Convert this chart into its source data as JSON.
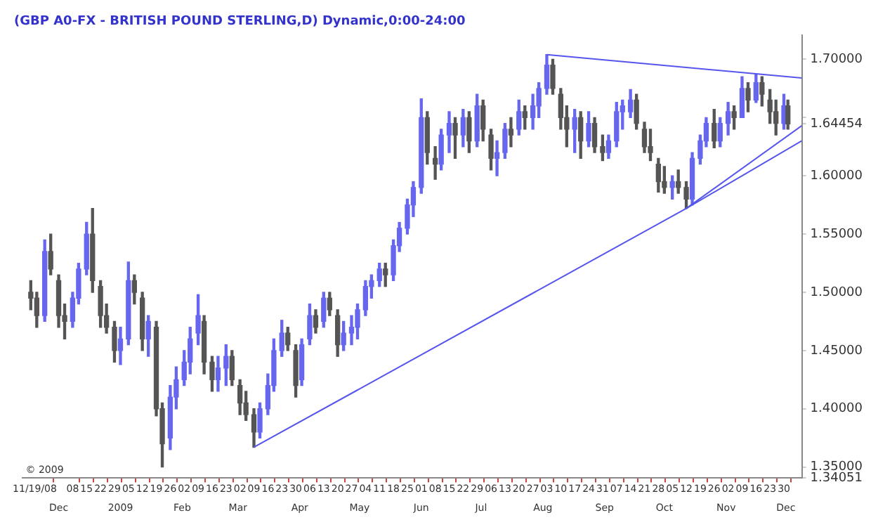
{
  "chart_data": {
    "type": "candlestick",
    "title": "(GBP A0-FX - BRITISH POUND STERLING,D) Dynamic,0:00-24:00",
    "annotations": [
      "© 2009"
    ],
    "x": [
      "2008-11-17",
      "2008-11-20",
      "2008-11-24",
      "2008-11-27",
      "2008-12-01",
      "2008-12-04",
      "2008-12-08",
      "2008-12-11",
      "2008-12-15",
      "2008-12-18",
      "2008-12-22",
      "2008-12-25",
      "2008-12-29",
      "2009-01-01",
      "2009-01-05",
      "2009-01-08",
      "2009-01-12",
      "2009-01-15",
      "2009-01-19",
      "2009-01-22",
      "2009-01-26",
      "2009-01-29",
      "2009-02-02",
      "2009-02-05",
      "2009-02-09",
      "2009-02-12",
      "2009-02-16",
      "2009-02-19",
      "2009-02-23",
      "2009-02-26",
      "2009-03-02",
      "2009-03-05",
      "2009-03-09",
      "2009-03-12",
      "2009-03-16",
      "2009-03-19",
      "2009-03-23",
      "2009-03-26",
      "2009-03-30",
      "2009-04-02",
      "2009-04-06",
      "2009-04-09",
      "2009-04-13",
      "2009-04-16",
      "2009-04-20",
      "2009-04-23",
      "2009-04-27",
      "2009-04-30",
      "2009-05-04",
      "2009-05-07",
      "2009-05-11",
      "2009-05-14",
      "2009-05-18",
      "2009-05-21",
      "2009-05-25",
      "2009-05-28",
      "2009-06-01",
      "2009-06-04",
      "2009-06-08",
      "2009-06-11",
      "2009-06-15",
      "2009-06-18",
      "2009-06-22",
      "2009-06-25",
      "2009-06-29",
      "2009-07-02",
      "2009-07-06",
      "2009-07-09",
      "2009-07-13",
      "2009-07-16",
      "2009-07-20",
      "2009-07-23",
      "2009-07-27",
      "2009-07-30",
      "2009-08-03",
      "2009-08-06",
      "2009-08-10",
      "2009-08-13",
      "2009-08-17",
      "2009-08-20",
      "2009-08-24",
      "2009-08-27",
      "2009-08-31",
      "2009-09-03",
      "2009-09-07",
      "2009-09-10",
      "2009-09-14",
      "2009-09-17",
      "2009-09-21",
      "2009-09-24",
      "2009-09-28",
      "2009-10-01",
      "2009-10-05",
      "2009-10-08",
      "2009-10-12",
      "2009-10-15",
      "2009-10-19",
      "2009-10-22",
      "2009-10-26",
      "2009-10-29",
      "2009-11-02",
      "2009-11-05",
      "2009-11-09",
      "2009-11-12",
      "2009-11-16",
      "2009-11-19",
      "2009-11-23",
      "2009-11-26",
      "2009-11-30",
      "2009-12-02"
    ],
    "ohlc": [
      [
        1.5,
        1.51,
        1.485,
        1.495
      ],
      [
        1.495,
        1.5,
        1.47,
        1.48
      ],
      [
        1.48,
        1.545,
        1.475,
        1.535
      ],
      [
        1.535,
        1.55,
        1.515,
        1.52
      ],
      [
        1.51,
        1.515,
        1.47,
        1.48
      ],
      [
        1.48,
        1.49,
        1.46,
        1.475
      ],
      [
        1.475,
        1.5,
        1.47,
        1.495
      ],
      [
        1.495,
        1.525,
        1.49,
        1.52
      ],
      [
        1.52,
        1.56,
        1.515,
        1.55
      ],
      [
        1.55,
        1.572,
        1.5,
        1.51
      ],
      [
        1.505,
        1.51,
        1.47,
        1.48
      ],
      [
        1.48,
        1.49,
        1.465,
        1.47
      ],
      [
        1.47,
        1.475,
        1.44,
        1.45
      ],
      [
        1.45,
        1.47,
        1.438,
        1.46
      ],
      [
        1.46,
        1.526,
        1.455,
        1.51
      ],
      [
        1.51,
        1.515,
        1.49,
        1.5
      ],
      [
        1.495,
        1.5,
        1.45,
        1.46
      ],
      [
        1.46,
        1.48,
        1.445,
        1.475
      ],
      [
        1.47,
        1.475,
        1.394,
        1.4
      ],
      [
        1.4,
        1.405,
        1.35,
        1.37
      ],
      [
        1.375,
        1.42,
        1.365,
        1.41
      ],
      [
        1.41,
        1.436,
        1.4,
        1.425
      ],
      [
        1.425,
        1.45,
        1.42,
        1.44
      ],
      [
        1.44,
        1.47,
        1.43,
        1.46
      ],
      [
        1.465,
        1.498,
        1.455,
        1.48
      ],
      [
        1.475,
        1.48,
        1.43,
        1.44
      ],
      [
        1.44,
        1.445,
        1.415,
        1.425
      ],
      [
        1.425,
        1.445,
        1.415,
        1.435
      ],
      [
        1.435,
        1.455,
        1.42,
        1.445
      ],
      [
        1.445,
        1.45,
        1.42,
        1.425
      ],
      [
        1.42,
        1.425,
        1.395,
        1.405
      ],
      [
        1.405,
        1.415,
        1.39,
        1.395
      ],
      [
        1.395,
        1.4,
        1.367,
        1.38
      ],
      [
        1.38,
        1.405,
        1.375,
        1.4
      ],
      [
        1.4,
        1.43,
        1.395,
        1.42
      ],
      [
        1.42,
        1.46,
        1.415,
        1.45
      ],
      [
        1.45,
        1.476,
        1.445,
        1.465
      ],
      [
        1.465,
        1.47,
        1.45,
        1.455
      ],
      [
        1.45,
        1.455,
        1.41,
        1.42
      ],
      [
        1.425,
        1.46,
        1.42,
        1.455
      ],
      [
        1.46,
        1.49,
        1.455,
        1.48
      ],
      [
        1.48,
        1.485,
        1.465,
        1.47
      ],
      [
        1.475,
        1.5,
        1.47,
        1.495
      ],
      [
        1.495,
        1.5,
        1.48,
        1.485
      ],
      [
        1.48,
        1.485,
        1.445,
        1.455
      ],
      [
        1.455,
        1.475,
        1.45,
        1.465
      ],
      [
        1.465,
        1.48,
        1.455,
        1.47
      ],
      [
        1.47,
        1.49,
        1.46,
        1.485
      ],
      [
        1.485,
        1.51,
        1.48,
        1.505
      ],
      [
        1.505,
        1.515,
        1.495,
        1.51
      ],
      [
        1.51,
        1.525,
        1.505,
        1.52
      ],
      [
        1.52,
        1.525,
        1.505,
        1.515
      ],
      [
        1.515,
        1.545,
        1.51,
        1.54
      ],
      [
        1.54,
        1.56,
        1.535,
        1.555
      ],
      [
        1.555,
        1.58,
        1.55,
        1.575
      ],
      [
        1.575,
        1.595,
        1.565,
        1.59
      ],
      [
        1.59,
        1.666,
        1.585,
        1.65
      ],
      [
        1.65,
        1.655,
        1.61,
        1.62
      ],
      [
        1.615,
        1.625,
        1.597,
        1.61
      ],
      [
        1.61,
        1.64,
        1.605,
        1.635
      ],
      [
        1.635,
        1.655,
        1.62,
        1.645
      ],
      [
        1.645,
        1.65,
        1.615,
        1.635
      ],
      [
        1.635,
        1.657,
        1.625,
        1.65
      ],
      [
        1.65,
        1.655,
        1.62,
        1.63
      ],
      [
        1.63,
        1.67,
        1.625,
        1.66
      ],
      [
        1.66,
        1.665,
        1.63,
        1.64
      ],
      [
        1.635,
        1.64,
        1.605,
        1.615
      ],
      [
        1.615,
        1.63,
        1.6,
        1.62
      ],
      [
        1.62,
        1.645,
        1.615,
        1.64
      ],
      [
        1.64,
        1.65,
        1.625,
        1.635
      ],
      [
        1.64,
        1.665,
        1.635,
        1.655
      ],
      [
        1.655,
        1.66,
        1.64,
        1.65
      ],
      [
        1.65,
        1.67,
        1.64,
        1.66
      ],
      [
        1.66,
        1.68,
        1.65,
        1.675
      ],
      [
        1.675,
        1.704,
        1.67,
        1.695
      ],
      [
        1.695,
        1.7,
        1.67,
        1.675
      ],
      [
        1.67,
        1.675,
        1.64,
        1.65
      ],
      [
        1.65,
        1.66,
        1.625,
        1.64
      ],
      [
        1.64,
        1.657,
        1.62,
        1.65
      ],
      [
        1.65,
        1.655,
        1.615,
        1.63
      ],
      [
        1.63,
        1.655,
        1.625,
        1.645
      ],
      [
        1.645,
        1.65,
        1.62,
        1.625
      ],
      [
        1.625,
        1.635,
        1.613,
        1.62
      ],
      [
        1.62,
        1.635,
        1.615,
        1.63
      ],
      [
        1.63,
        1.663,
        1.625,
        1.655
      ],
      [
        1.655,
        1.665,
        1.64,
        1.66
      ],
      [
        1.655,
        1.674,
        1.65,
        1.665
      ],
      [
        1.665,
        1.67,
        1.64,
        1.645
      ],
      [
        1.64,
        1.646,
        1.62,
        1.625
      ],
      [
        1.625,
        1.64,
        1.613,
        1.62
      ],
      [
        1.61,
        1.615,
        1.586,
        1.595
      ],
      [
        1.595,
        1.608,
        1.585,
        1.59
      ],
      [
        1.59,
        1.6,
        1.58,
        1.595
      ],
      [
        1.595,
        1.605,
        1.585,
        1.59
      ],
      [
        1.59,
        1.595,
        1.572,
        1.58
      ],
      [
        1.58,
        1.62,
        1.575,
        1.615
      ],
      [
        1.615,
        1.635,
        1.61,
        1.63
      ],
      [
        1.63,
        1.65,
        1.625,
        1.645
      ],
      [
        1.645,
        1.657,
        1.624,
        1.63
      ],
      [
        1.63,
        1.65,
        1.625,
        1.645
      ],
      [
        1.645,
        1.663,
        1.635,
        1.655
      ],
      [
        1.655,
        1.66,
        1.64,
        1.65
      ],
      [
        1.65,
        1.685,
        1.65,
        1.675
      ],
      [
        1.675,
        1.68,
        1.655,
        1.665
      ],
      [
        1.665,
        1.687,
        1.663,
        1.68
      ],
      [
        1.68,
        1.685,
        1.66,
        1.67
      ],
      [
        1.665,
        1.674,
        1.645,
        1.655
      ],
      [
        1.655,
        1.665,
        1.635,
        1.645
      ],
      [
        1.645,
        1.67,
        1.64,
        1.66
      ],
      [
        1.66,
        1.665,
        1.64,
        1.64454
      ]
    ],
    "colors": [
      "#555555",
      "#555555",
      "#6666ee",
      "#555555",
      "#555555",
      "#555555",
      "#6666ee",
      "#6666ee",
      "#6666ee",
      "#555555",
      "#555555",
      "#555555",
      "#555555",
      "#6666ee",
      "#6666ee",
      "#555555",
      "#555555",
      "#6666ee",
      "#555555",
      "#555555",
      "#6666ee",
      "#6666ee",
      "#6666ee",
      "#6666ee",
      "#6666ee",
      "#555555",
      "#555555",
      "#6666ee",
      "#6666ee",
      "#555555",
      "#555555",
      "#555555",
      "#555555",
      "#6666ee",
      "#6666ee",
      "#6666ee",
      "#6666ee",
      "#555555",
      "#555555",
      "#6666ee",
      "#6666ee",
      "#555555",
      "#6666ee",
      "#555555",
      "#555555",
      "#6666ee",
      "#6666ee",
      "#6666ee",
      "#6666ee",
      "#6666ee",
      "#6666ee",
      "#555555",
      "#6666ee",
      "#6666ee",
      "#6666ee",
      "#6666ee",
      "#6666ee",
      "#555555",
      "#555555",
      "#6666ee",
      "#6666ee",
      "#555555",
      "#6666ee",
      "#555555",
      "#6666ee",
      "#555555",
      "#555555",
      "#6666ee",
      "#6666ee",
      "#555555",
      "#6666ee",
      "#555555",
      "#6666ee",
      "#6666ee",
      "#6666ee",
      "#555555",
      "#555555",
      "#555555",
      "#6666ee",
      "#555555",
      "#6666ee",
      "#555555",
      "#555555",
      "#6666ee",
      "#6666ee",
      "#6666ee",
      "#6666ee",
      "#555555",
      "#555555",
      "#555555",
      "#555555",
      "#555555",
      "#6666ee",
      "#555555",
      "#555555",
      "#6666ee",
      "#6666ee",
      "#6666ee",
      "#555555",
      "#6666ee",
      "#6666ee",
      "#555555",
      "#6666ee",
      "#555555",
      "#6666ee",
      "#555555",
      "#555555",
      "#555555",
      "#6666ee",
      "#555555"
    ],
    "series": [
      {
        "type": "line",
        "color": "#5555ee",
        "x": [
          "2009-08-03",
          "2009-12-09"
        ],
        "values": [
          1.704,
          1.684
        ]
      },
      {
        "type": "line",
        "color": "#5555ee",
        "x": [
          "2009-03-09",
          "2009-10-12",
          "2009-12-09"
        ],
        "values": [
          1.367,
          1.572,
          1.63
        ]
      },
      {
        "type": "line",
        "color": "#5555ee",
        "x": [
          "2009-10-12",
          "2009-12-09"
        ],
        "values": [
          1.572,
          1.643
        ]
      }
    ],
    "xlim": [
      "2008-11-13",
      "2009-12-09"
    ],
    "xticks": [
      {
        "value": "2008-11-19",
        "label": "11/19/08"
      },
      {
        "value": "2008-12-08",
        "label": "08"
      },
      {
        "value": "2008-12-15",
        "label": "15"
      },
      {
        "value": "2008-12-22",
        "label": "22"
      },
      {
        "value": "2008-12-29",
        "label": "29"
      },
      {
        "value": "2009-01-05",
        "label": "05"
      },
      {
        "value": "2009-01-12",
        "label": "12"
      },
      {
        "value": "2009-01-19",
        "label": "19"
      },
      {
        "value": "2009-01-26",
        "label": "26"
      },
      {
        "value": "2009-02-02",
        "label": "02"
      },
      {
        "value": "2009-02-09",
        "label": "09"
      },
      {
        "value": "2009-02-16",
        "label": "16"
      },
      {
        "value": "2009-02-23",
        "label": "23"
      },
      {
        "value": "2009-03-02",
        "label": "02"
      },
      {
        "value": "2009-03-09",
        "label": "09"
      },
      {
        "value": "2009-03-16",
        "label": "16"
      },
      {
        "value": "2009-03-23",
        "label": "23"
      },
      {
        "value": "2009-03-30",
        "label": "30"
      },
      {
        "value": "2009-04-06",
        "label": "06"
      },
      {
        "value": "2009-04-13",
        "label": "13"
      },
      {
        "value": "2009-04-20",
        "label": "20"
      },
      {
        "value": "2009-04-27",
        "label": "27"
      },
      {
        "value": "2009-05-04",
        "label": "04"
      },
      {
        "value": "2009-05-11",
        "label": "11"
      },
      {
        "value": "2009-05-18",
        "label": "18"
      },
      {
        "value": "2009-05-25",
        "label": "25"
      },
      {
        "value": "2009-06-01",
        "label": "01"
      },
      {
        "value": "2009-06-08",
        "label": "08"
      },
      {
        "value": "2009-06-15",
        "label": "15"
      },
      {
        "value": "2009-06-22",
        "label": "22"
      },
      {
        "value": "2009-06-29",
        "label": "29"
      },
      {
        "value": "2009-07-06",
        "label": "06"
      },
      {
        "value": "2009-07-13",
        "label": "13"
      },
      {
        "value": "2009-07-20",
        "label": "20"
      },
      {
        "value": "2009-07-27",
        "label": "27"
      },
      {
        "value": "2009-08-03",
        "label": "03"
      },
      {
        "value": "2009-08-10",
        "label": "10"
      },
      {
        "value": "2009-08-17",
        "label": "17"
      },
      {
        "value": "2009-08-24",
        "label": "24"
      },
      {
        "value": "2009-08-31",
        "label": "31"
      },
      {
        "value": "2009-09-07",
        "label": "07"
      },
      {
        "value": "2009-09-14",
        "label": "14"
      },
      {
        "value": "2009-09-21",
        "label": "21"
      },
      {
        "value": "2009-09-28",
        "label": "28"
      },
      {
        "value": "2009-10-05",
        "label": "05"
      },
      {
        "value": "2009-10-12",
        "label": "12"
      },
      {
        "value": "2009-10-19",
        "label": "19"
      },
      {
        "value": "2009-10-26",
        "label": "26"
      },
      {
        "value": "2009-11-02",
        "label": "02"
      },
      {
        "value": "2009-11-09",
        "label": "09"
      },
      {
        "value": "2009-11-16",
        "label": "16"
      },
      {
        "value": "2009-11-23",
        "label": "23"
      },
      {
        "value": "2009-11-30",
        "label": "30"
      }
    ],
    "x2lim": [
      "2008-11-13",
      "2009-12-09"
    ],
    "x2ticks": [
      {
        "value": "2008-12-01",
        "label": "Dec"
      },
      {
        "value": "2009-01-01",
        "label": "2009"
      },
      {
        "value": "2009-02-01",
        "label": "Feb"
      },
      {
        "value": "2009-03-01",
        "label": "Mar"
      },
      {
        "value": "2009-04-01",
        "label": "Apr"
      },
      {
        "value": "2009-05-01",
        "label": "May"
      },
      {
        "value": "2009-06-01",
        "label": "Jun"
      },
      {
        "value": "2009-07-01",
        "label": "Jul"
      },
      {
        "value": "2009-08-01",
        "label": "Aug"
      },
      {
        "value": "2009-09-01",
        "label": "Sep"
      },
      {
        "value": "2009-10-01",
        "label": "Oct"
      },
      {
        "value": "2009-11-01",
        "label": "Nov"
      },
      {
        "value": "2009-12-01",
        "label": "Dec"
      }
    ],
    "ylim": [
      1.34051,
      1.721
    ],
    "yticks": [
      1.34051,
      {
        "value": 1.35,
        "label": "1.35000"
      },
      {
        "value": 1.4,
        "label": "1.40000"
      },
      {
        "value": 1.45,
        "label": "1.45000"
      },
      {
        "value": 1.5,
        "label": "1.50000"
      },
      {
        "value": 1.55,
        "label": "1.55000"
      },
      {
        "value": 1.6,
        "label": "1.60000"
      },
      {
        "value": 1.64454,
        "label": "1.64454"
      },
      {
        "value": 1.65,
        "label": null
      },
      {
        "value": 1.7,
        "label": "1.70000"
      }
    ],
    "grid": false,
    "legend": false
  }
}
